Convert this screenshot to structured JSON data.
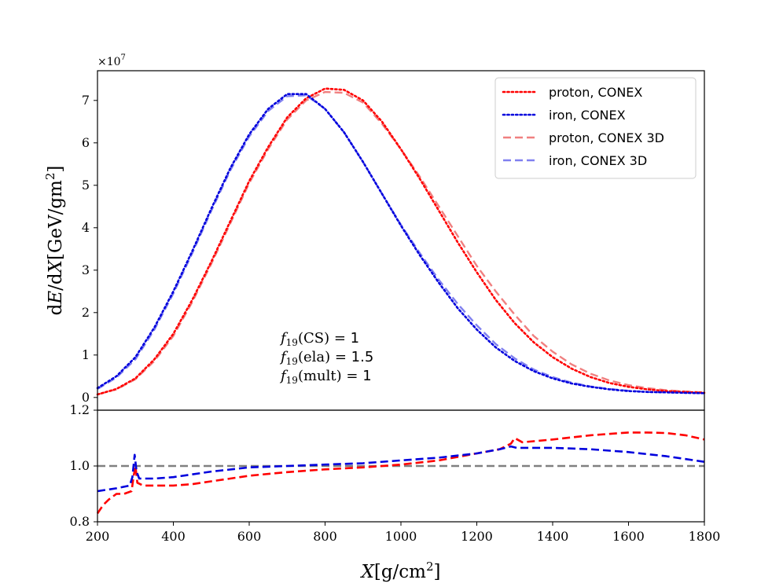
{
  "chart_data": [
    {
      "type": "line",
      "panel": "main",
      "ylabel": "dE/dX[GeV/gm²]",
      "ylabel_parts": {
        "d1": "d",
        "E": "E",
        "slash": "/d",
        "X": "X",
        "unit": "[GeV/gm",
        "sup": "2",
        "close": "]"
      },
      "offset_label": "×10⁷",
      "offset_parts": {
        "base": "×10",
        "exp": "7"
      },
      "xlim": [
        200,
        1800
      ],
      "ylim": [
        -0.3,
        7.7
      ],
      "yticks": [
        "0",
        "1",
        "2",
        "3",
        "4",
        "5",
        "6",
        "7"
      ],
      "ytick_values": [
        0,
        1,
        2,
        3,
        4,
        5,
        6,
        7
      ],
      "grid": false,
      "legend_position": "top-right",
      "annotation": {
        "line1": {
          "f": "f",
          "sub": "19",
          "arg": "(CS) = ",
          "val": "1"
        },
        "line2": {
          "f": "f",
          "sub": "19",
          "arg": "(ela) = ",
          "val": "1.5"
        },
        "line3": {
          "f": "f",
          "sub": "19",
          "arg": "(mult) = ",
          "val": "1"
        }
      },
      "x": [
        200,
        250,
        300,
        350,
        400,
        450,
        500,
        550,
        600,
        650,
        700,
        750,
        800,
        850,
        900,
        950,
        1000,
        1050,
        1100,
        1150,
        1200,
        1250,
        1300,
        1350,
        1400,
        1450,
        1500,
        1550,
        1600,
        1650,
        1700,
        1750,
        1800
      ],
      "series": [
        {
          "name": "proton, CONEX",
          "color": "#ff0000",
          "style": "dotted",
          "values": [
            0.07,
            0.2,
            0.45,
            0.9,
            1.5,
            2.3,
            3.2,
            4.15,
            5.1,
            5.9,
            6.6,
            7.05,
            7.28,
            7.25,
            7.0,
            6.5,
            5.85,
            5.15,
            4.4,
            3.65,
            2.95,
            2.3,
            1.75,
            1.3,
            0.95,
            0.68,
            0.48,
            0.34,
            0.25,
            0.19,
            0.15,
            0.13,
            0.11
          ]
        },
        {
          "name": "iron, CONEX",
          "color": "#0000dd",
          "style": "dotted",
          "values": [
            0.22,
            0.5,
            0.95,
            1.65,
            2.5,
            3.45,
            4.45,
            5.4,
            6.2,
            6.8,
            7.15,
            7.15,
            6.8,
            6.25,
            5.55,
            4.8,
            4.05,
            3.35,
            2.7,
            2.1,
            1.6,
            1.18,
            0.86,
            0.62,
            0.45,
            0.33,
            0.25,
            0.19,
            0.15,
            0.13,
            0.12,
            0.11,
            0.1
          ]
        },
        {
          "name": "proton, CONEX 3D",
          "color": "#f08080",
          "style": "dashed",
          "values": [
            0.07,
            0.19,
            0.43,
            0.86,
            1.45,
            2.25,
            3.15,
            4.1,
            5.05,
            5.85,
            6.55,
            7.0,
            7.2,
            7.18,
            6.95,
            6.45,
            5.85,
            5.2,
            4.5,
            3.8,
            3.1,
            2.5,
            1.95,
            1.45,
            1.08,
            0.78,
            0.56,
            0.4,
            0.29,
            0.22,
            0.17,
            0.14,
            0.12
          ]
        },
        {
          "name": "iron, CONEX 3D",
          "color": "#8080f0",
          "style": "dashed",
          "values": [
            0.2,
            0.47,
            0.9,
            1.6,
            2.45,
            3.4,
            4.4,
            5.35,
            6.15,
            6.75,
            7.1,
            7.12,
            6.8,
            6.25,
            5.55,
            4.8,
            4.07,
            3.4,
            2.77,
            2.2,
            1.7,
            1.26,
            0.92,
            0.66,
            0.48,
            0.35,
            0.26,
            0.2,
            0.16,
            0.13,
            0.12,
            0.11,
            0.1
          ]
        }
      ]
    },
    {
      "type": "line",
      "panel": "ratio",
      "xlabel": "X[g/cm²]",
      "xlabel_parts": {
        "X": "X",
        "unit": "[g/cm",
        "sup": "2",
        "close": "]"
      },
      "xlim": [
        200,
        1800
      ],
      "ylim": [
        0.8,
        1.2
      ],
      "xticks": [
        "200",
        "400",
        "600",
        "800",
        "1000",
        "1200",
        "1400",
        "1600",
        "1800"
      ],
      "xtick_values": [
        200,
        400,
        600,
        800,
        1000,
        1200,
        1400,
        1600,
        1800
      ],
      "yticks": [
        "0.8",
        "1.0",
        "1.2"
      ],
      "ytick_values": [
        0.8,
        1.0,
        1.2
      ],
      "reference_line": {
        "y": 1.0,
        "color": "#808080",
        "style": "dashed"
      },
      "series": [
        {
          "color": "#ff0000",
          "style": "dashed",
          "x": [
            200,
            215,
            230,
            250,
            270,
            290,
            295,
            300,
            305,
            320,
            350,
            400,
            450,
            500,
            550,
            600,
            700,
            800,
            900,
            1000,
            1100,
            1200,
            1260,
            1290,
            1300,
            1320,
            1400,
            1500,
            1600,
            1650,
            1700,
            1750,
            1800
          ],
          "values": [
            0.83,
            0.86,
            0.88,
            0.9,
            0.9,
            0.91,
            0.96,
            1.0,
            0.94,
            0.93,
            0.93,
            0.93,
            0.935,
            0.945,
            0.955,
            0.965,
            0.978,
            0.988,
            0.995,
            1.005,
            1.02,
            1.045,
            1.06,
            1.08,
            1.1,
            1.085,
            1.095,
            1.11,
            1.12,
            1.12,
            1.118,
            1.11,
            1.095
          ]
        },
        {
          "color": "#0000dd",
          "style": "dashed",
          "x": [
            200,
            250,
            285,
            292,
            298,
            303,
            310,
            350,
            400,
            500,
            600,
            700,
            800,
            900,
            1000,
            1100,
            1200,
            1260,
            1290,
            1305,
            1400,
            1500,
            1600,
            1700,
            1800
          ],
          "values": [
            0.91,
            0.92,
            0.93,
            0.96,
            1.04,
            0.98,
            0.955,
            0.955,
            0.96,
            0.98,
            0.995,
            1.0,
            1.005,
            1.01,
            1.02,
            1.03,
            1.045,
            1.06,
            1.07,
            1.065,
            1.065,
            1.06,
            1.05,
            1.035,
            1.015
          ]
        }
      ]
    }
  ],
  "legend": [
    {
      "label": "proton, CONEX",
      "color": "#ff0000",
      "style": "dotted"
    },
    {
      "label": "iron, CONEX",
      "color": "#0000dd",
      "style": "dotted"
    },
    {
      "label": "proton, CONEX 3D",
      "color": "#f08080",
      "style": "dashed"
    },
    {
      "label": "iron, CONEX 3D",
      "color": "#8080f0",
      "style": "dashed"
    }
  ]
}
